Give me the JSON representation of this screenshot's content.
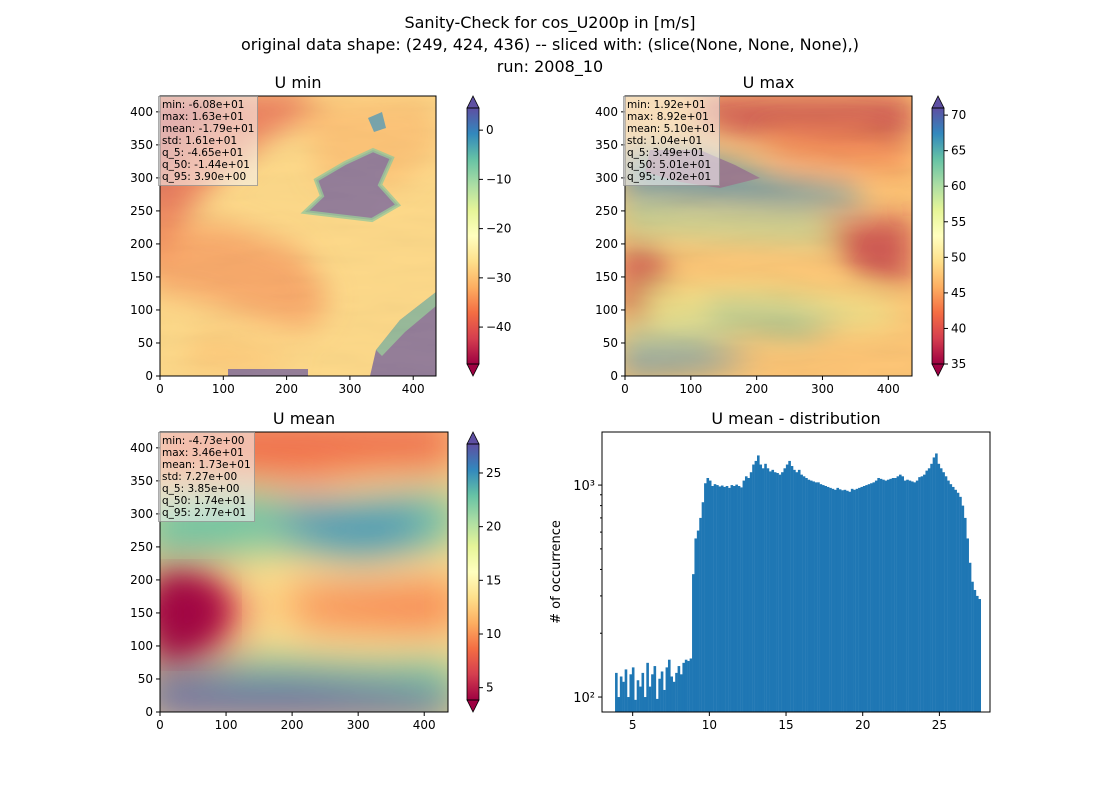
{
  "figure": {
    "title_lines": [
      "Sanity-Check for cos_U200p in [m/s]",
      "original data shape: (249, 424, 436) -- sliced with: (slice(None, None, None),)",
      "run: 2008_10"
    ]
  },
  "chart_data": [
    {
      "type": "heatmap",
      "title": "U min",
      "xlim": [
        0,
        436
      ],
      "ylim": [
        0,
        424
      ],
      "xticks": [
        0,
        100,
        200,
        300,
        400
      ],
      "yticks": [
        0,
        50,
        100,
        150,
        200,
        250,
        300,
        350,
        400
      ],
      "colormap": "Spectral",
      "colorbar": {
        "vmin": -47.5,
        "vmax": 4.5,
        "ticks": [
          0,
          -10,
          -20,
          -30,
          -40
        ],
        "extend": "both"
      },
      "stats": [
        "min: -6.08e+01",
        "max: 1.63e+01",
        "mean: -1.79e+01",
        "std: 1.61e+01",
        "q_5: -4.65e+01",
        "q_50: -1.44e+01",
        "q_95: 3.90e+00"
      ]
    },
    {
      "type": "heatmap",
      "title": "U max",
      "xlim": [
        0,
        436
      ],
      "ylim": [
        0,
        424
      ],
      "xticks": [
        0,
        100,
        200,
        300,
        400
      ],
      "yticks": [
        0,
        50,
        100,
        150,
        200,
        250,
        300,
        350,
        400
      ],
      "colormap": "Spectral",
      "colorbar": {
        "vmin": 35,
        "vmax": 71,
        "ticks": [
          35,
          40,
          45,
          50,
          55,
          60,
          65,
          70
        ],
        "extend": "both"
      },
      "stats": [
        "min: 1.92e+01",
        "max: 8.92e+01",
        "mean: 5.10e+01",
        "std: 1.04e+01",
        "q_5: 3.49e+01",
        "q_50: 5.01e+01",
        "q_95: 7.02e+01"
      ]
    },
    {
      "type": "heatmap",
      "title": "U mean",
      "xlim": [
        0,
        436
      ],
      "ylim": [
        0,
        424
      ],
      "xticks": [
        0,
        100,
        200,
        300,
        400
      ],
      "yticks": [
        0,
        50,
        100,
        150,
        200,
        250,
        300,
        350,
        400
      ],
      "colormap": "Spectral",
      "colorbar": {
        "vmin": 3.85,
        "vmax": 27.7,
        "ticks": [
          5,
          10,
          15,
          20,
          25
        ],
        "extend": "both"
      },
      "stats": [
        "min: -4.73e+00",
        "max: 3.46e+01",
        "mean: 1.73e+01",
        "std: 7.27e+00",
        "q_5: 3.85e+00",
        "q_50: 1.74e+01",
        "q_95: 2.77e+01"
      ]
    },
    {
      "type": "bar",
      "title": "U mean - distribution",
      "ylabel": "# of occurrence",
      "xlabel": "",
      "yscale": "log",
      "xlim": [
        3.0,
        28.3
      ],
      "ylim": [
        85,
        1780
      ],
      "xticks": [
        5,
        10,
        15,
        20,
        25
      ],
      "yticks": [
        {
          "value": 100,
          "label": "10²"
        },
        {
          "value": 1000,
          "label": "10³"
        }
      ],
      "bar_color": "#1f77b4",
      "bin_range": [
        3.85,
        27.7
      ],
      "counts": [
        130,
        100,
        125,
        118,
        135,
        100,
        128,
        138,
        97,
        120,
        112,
        130,
        100,
        145,
        112,
        128,
        140,
        98,
        122,
        132,
        108,
        138,
        150,
        125,
        118,
        130,
        140,
        128,
        145,
        150,
        148,
        152,
        380,
        560,
        610,
        700,
        830,
        1020,
        1080,
        1050,
        990,
        1010,
        1000,
        985,
        995,
        980,
        990,
        970,
        1000,
        990,
        1005,
        990,
        975,
        1050,
        1100,
        1080,
        1150,
        1250,
        1300,
        1380,
        1250,
        1200,
        1260,
        1200,
        1160,
        1180,
        1150,
        1140,
        1120,
        1150,
        1200,
        1250,
        1300,
        1230,
        1180,
        1150,
        1180,
        1120,
        1100,
        1080,
        1060,
        1050,
        1040,
        1030,
        1030,
        1010,
        1000,
        990,
        980,
        970,
        960,
        950,
        970,
        955,
        945,
        950,
        940,
        930,
        960,
        950,
        960,
        970,
        980,
        990,
        1000,
        1010,
        1020,
        1030,
        1050,
        1080,
        1070,
        1060,
        1050,
        1060,
        1070,
        1080,
        1080,
        1100,
        1120,
        1100,
        1050,
        1060,
        1050,
        1040,
        1030,
        1050,
        1090,
        1100,
        1120,
        1170,
        1200,
        1260,
        1350,
        1410,
        1260,
        1200,
        1150,
        1100,
        1050,
        1010,
        980,
        950,
        920,
        880,
        800,
        700,
        560,
        430,
        350,
        320,
        300,
        290
      ]
    }
  ]
}
